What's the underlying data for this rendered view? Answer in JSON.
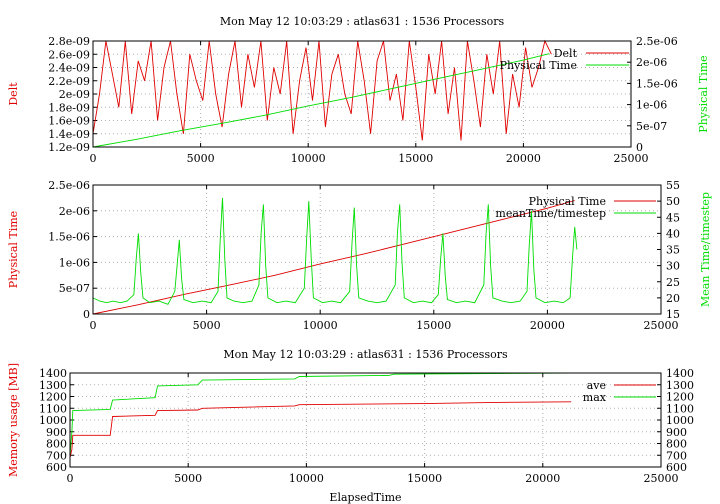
{
  "colors": {
    "red": "#e00000",
    "green": "#00dd00",
    "grid": "#b0b0b0"
  },
  "chart_data": [
    {
      "type": "line",
      "title": "Mon May 12 10:03:29 : atlas631 : 1536 Processors",
      "xlabel": "",
      "xlim": [
        0,
        25000
      ],
      "xticks": [
        "0",
        "5000",
        "10000",
        "15000",
        "20000",
        "25000"
      ],
      "ylabel_left": "Delt",
      "ylim_left": [
        1.2e-09,
        2.8e-09
      ],
      "yticks_left": [
        "1.2e-09",
        "1.4e-09",
        "1.6e-09",
        "1.8e-09",
        "2e-09",
        "2.2e-09",
        "2.4e-09",
        "2.6e-09",
        "2.8e-09"
      ],
      "ylabel_right": "Physical Time",
      "ylim_right": [
        0,
        2.5e-06
      ],
      "yticks_right": [
        "0",
        "5e-07",
        "1e-06",
        "1.5e-06",
        "2e-06",
        "2.5e-06"
      ],
      "grid": true,
      "legend_position": "top-right",
      "series": [
        {
          "name": "Delt",
          "axis": "left",
          "color": "red",
          "x": [
            0,
            300,
            600,
            900,
            1200,
            1500,
            1800,
            2100,
            2400,
            2700,
            3000,
            3300,
            3600,
            3900,
            4200,
            4500,
            4800,
            5100,
            5400,
            5700,
            6000,
            6300,
            6600,
            6900,
            7200,
            7500,
            7800,
            8100,
            8400,
            8700,
            9000,
            9300,
            9600,
            9900,
            10200,
            10500,
            10800,
            11100,
            11400,
            11700,
            12000,
            12300,
            12600,
            12900,
            13200,
            13500,
            13800,
            14100,
            14400,
            14700,
            15000,
            15300,
            15600,
            15900,
            16200,
            16500,
            16800,
            17100,
            17400,
            17700,
            18000,
            18300,
            18600,
            18900,
            19200,
            19500,
            19800,
            20100,
            20400,
            20700,
            21000,
            21300
          ],
          "y": [
            1.4e-09,
            2e-09,
            2.8e-09,
            2.3e-09,
            1.8e-09,
            2.8e-09,
            1.7e-09,
            2.5e-09,
            2.2e-09,
            2.8e-09,
            1.6e-09,
            2.4e-09,
            2.8e-09,
            2e-09,
            1.4e-09,
            2.6e-09,
            2.2e-09,
            1.9e-09,
            2.8e-09,
            2e-09,
            1.5e-09,
            2.3e-09,
            2.8e-09,
            1.8e-09,
            2.6e-09,
            2.1e-09,
            2.8e-09,
            1.6e-09,
            2.4e-09,
            2e-09,
            2.8e-09,
            1.4e-09,
            2.2e-09,
            2.7e-09,
            1.9e-09,
            2.8e-09,
            1.5e-09,
            2.3e-09,
            2.6e-09,
            2e-09,
            1.7e-09,
            2.8e-09,
            2.2e-09,
            1.4e-09,
            2.5e-09,
            2.8e-09,
            1.9e-09,
            2.3e-09,
            1.6e-09,
            2.8e-09,
            2.1e-09,
            1.3e-09,
            2.6e-09,
            2e-09,
            2.8e-09,
            1.7e-09,
            2.4e-09,
            1.3e-09,
            2.8e-09,
            2.2e-09,
            1.5e-09,
            2.6e-09,
            2e-09,
            2.8e-09,
            1.4e-09,
            2.3e-09,
            1.8e-09,
            2.7e-09,
            2.1e-09,
            2.4e-09,
            2.8e-09,
            2.6e-09
          ]
        },
        {
          "name": "Physical Time",
          "axis": "right",
          "color": "green",
          "x": [
            0,
            2000,
            4000,
            6000,
            8000,
            10000,
            12000,
            14000,
            16000,
            18000,
            20000,
            21200
          ],
          "y": [
            0,
            1.8e-07,
            3.8e-07,
            5.6e-07,
            7.5e-07,
            9.7e-07,
            1.17e-06,
            1.39e-06,
            1.61e-06,
            1.83e-06,
            2.05e-06,
            2.2e-06
          ]
        }
      ]
    },
    {
      "type": "line",
      "title": "",
      "xlabel": "",
      "xlim": [
        0,
        25000
      ],
      "xticks": [
        "0",
        "5000",
        "10000",
        "15000",
        "20000",
        "25000"
      ],
      "ylabel_left": "Physical Time",
      "ylim_left": [
        0,
        2.5e-06
      ],
      "yticks_left": [
        "0",
        "5e-07",
        "1e-06",
        "1.5e-06",
        "2e-06",
        "2.5e-06"
      ],
      "ylabel_right": "Mean Time/timestep",
      "ylim_right": [
        15,
        55
      ],
      "yticks_right": [
        "15",
        "20",
        "25",
        "30",
        "35",
        "40",
        "45",
        "50",
        "55"
      ],
      "grid": true,
      "legend_position": "top-right",
      "series": [
        {
          "name": "Physical Time",
          "axis": "left",
          "color": "red",
          "x": [
            0,
            2000,
            4000,
            6000,
            8000,
            10000,
            12000,
            14000,
            16000,
            18000,
            20000,
            21200
          ],
          "y": [
            0,
            1.8e-07,
            3.8e-07,
            5.6e-07,
            7.5e-07,
            9.7e-07,
            1.17e-06,
            1.39e-06,
            1.61e-06,
            1.83e-06,
            2.05e-06,
            2.2e-06
          ]
        },
        {
          "name": "meanTime/timestep",
          "axis": "right",
          "color": "green",
          "x": [
            0,
            300,
            600,
            900,
            1200,
            1500,
            1800,
            1900,
            2000,
            2100,
            2200,
            2500,
            2900,
            3300,
            3600,
            3700,
            3800,
            3900,
            4000,
            4400,
            4800,
            5200,
            5500,
            5600,
            5700,
            5800,
            5900,
            6200,
            6600,
            7000,
            7300,
            7400,
            7500,
            7600,
            7700,
            8100,
            8500,
            8900,
            9300,
            9400,
            9500,
            9600,
            9700,
            10100,
            10500,
            10900,
            11300,
            11400,
            11500,
            11600,
            11700,
            12100,
            12500,
            12900,
            13300,
            13400,
            13500,
            13600,
            13700,
            14100,
            14500,
            14900,
            15200,
            15300,
            15400,
            15500,
            15600,
            16000,
            16400,
            16800,
            17200,
            17300,
            17400,
            17500,
            17600,
            18000,
            18400,
            18800,
            19100,
            19200,
            19300,
            19400,
            19500,
            19900,
            20300,
            20700,
            21000,
            21100,
            21200,
            21300
          ],
          "y": [
            20,
            19,
            18.5,
            19,
            18.5,
            19,
            21,
            32,
            40,
            28,
            20,
            18.5,
            19,
            18,
            22,
            30,
            38,
            26,
            19.5,
            18.5,
            19,
            18.5,
            22,
            38,
            51,
            32,
            20,
            19,
            18.5,
            19,
            24,
            40,
            49,
            30,
            20,
            18.5,
            19,
            18.5,
            23,
            38,
            50,
            33,
            20,
            18.5,
            19,
            18.5,
            22,
            37,
            48,
            30,
            20,
            19,
            18.5,
            19,
            24,
            40,
            49,
            31,
            20,
            18.5,
            19,
            18.5,
            21,
            32,
            40,
            27,
            19.5,
            18.5,
            19,
            18.5,
            24,
            40,
            49,
            30,
            20,
            19,
            18.5,
            19,
            22,
            36,
            47,
            29,
            20,
            18.5,
            19,
            18.5,
            20,
            32,
            42,
            35
          ]
        }
      ]
    },
    {
      "type": "line",
      "title": "Mon May 12 10:03:29 : atlas631 : 1536 Processors",
      "xlabel": "ElapsedTime",
      "xlim": [
        0,
        25000
      ],
      "xticks": [
        "0",
        "5000",
        "10000",
        "15000",
        "20000",
        "25000"
      ],
      "ylabel_left": "Memory usage [MB]",
      "ylim_left": [
        600,
        1400
      ],
      "yticks_left": [
        "600",
        "700",
        "800",
        "900",
        "1000",
        "1100",
        "1200",
        "1300",
        "1400"
      ],
      "ylabel_right": "",
      "ylim_right": [
        600,
        1400
      ],
      "yticks_right": [
        "600",
        "700",
        "800",
        "900",
        "1000",
        "1100",
        "1200",
        "1300",
        "1400"
      ],
      "grid": true,
      "legend_position": "top-right",
      "series": [
        {
          "name": "ave",
          "axis": "left",
          "color": "red",
          "x": [
            0,
            80,
            120,
            1700,
            1800,
            3600,
            3700,
            5400,
            5600,
            9500,
            9700,
            15000,
            18000,
            21200
          ],
          "y": [
            680,
            750,
            870,
            870,
            1030,
            1040,
            1080,
            1085,
            1100,
            1120,
            1130,
            1140,
            1150,
            1155
          ]
        },
        {
          "name": "max",
          "axis": "left",
          "color": "green",
          "x": [
            0,
            80,
            120,
            1700,
            1800,
            3600,
            3700,
            5400,
            5600,
            9500,
            9700,
            13500,
            13700,
            21200
          ],
          "y": [
            700,
            900,
            1080,
            1090,
            1170,
            1190,
            1290,
            1300,
            1340,
            1350,
            1370,
            1380,
            1390,
            1400
          ]
        }
      ]
    }
  ]
}
